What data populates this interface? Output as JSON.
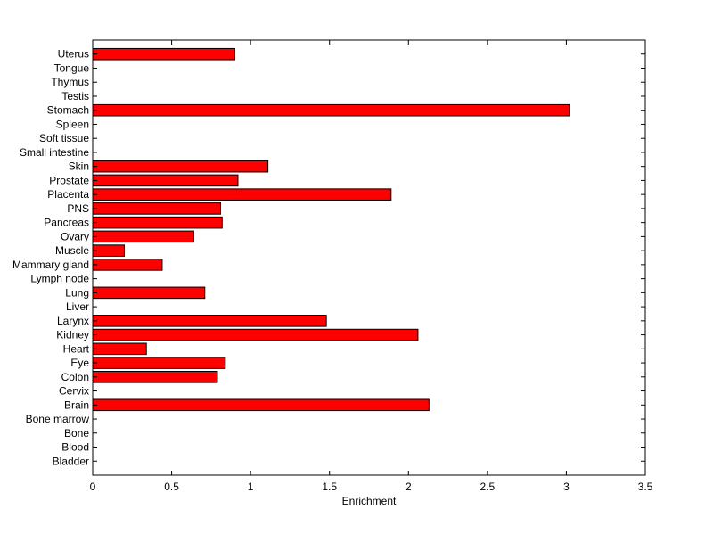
{
  "chart_data": {
    "type": "bar",
    "orientation": "horizontal",
    "title": "",
    "xlabel": "Enrichment",
    "ylabel": "",
    "xlim": [
      0,
      3.5
    ],
    "x_ticks": [
      0,
      0.5,
      1,
      1.5,
      2,
      2.5,
      3,
      3.5
    ],
    "x_tick_labels": [
      "0",
      "0.5",
      "1",
      "1.5",
      "2",
      "2.5",
      "3",
      "3.5"
    ],
    "grid": false,
    "bar_color": "#ff0000",
    "categories": [
      "Bladder",
      "Blood",
      "Bone",
      "Bone marrow",
      "Brain",
      "Cervix",
      "Colon",
      "Eye",
      "Heart",
      "Kidney",
      "Larynx",
      "Liver",
      "Lung",
      "Lymph node",
      "Mammary gland",
      "Muscle",
      "Ovary",
      "Pancreas",
      "PNS",
      "Placenta",
      "Prostate",
      "Skin",
      "Small intestine",
      "Soft tissue",
      "Spleen",
      "Stomach",
      "Testis",
      "Thymus",
      "Tongue",
      "Uterus"
    ],
    "values": [
      0,
      0,
      0,
      0,
      2.13,
      0,
      0.79,
      0.84,
      0.34,
      2.06,
      1.48,
      0,
      0.71,
      0,
      0.44,
      0.2,
      0.64,
      0.82,
      0.81,
      1.89,
      0.92,
      1.11,
      0,
      0,
      0,
      3.02,
      0,
      0,
      0,
      0.9
    ]
  }
}
